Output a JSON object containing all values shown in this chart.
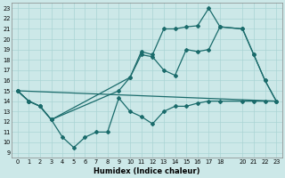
{
  "xlabel": "Humidex (Indice chaleur)",
  "xlim": [
    -0.5,
    23.5
  ],
  "ylim": [
    8.5,
    23.5
  ],
  "yticks": [
    9,
    10,
    11,
    12,
    13,
    14,
    15,
    16,
    17,
    18,
    19,
    20,
    21,
    22,
    23
  ],
  "xticks": [
    0,
    1,
    2,
    3,
    4,
    5,
    6,
    7,
    8,
    9,
    10,
    11,
    12,
    13,
    14,
    15,
    16,
    17,
    18,
    20,
    21,
    22,
    23
  ],
  "line_color": "#1a6b6b",
  "bg_color": "#cce8e8",
  "grid_color": "#aad4d4",
  "line_upper_x": [
    0,
    1,
    2,
    3,
    10,
    11,
    12,
    13,
    14,
    15,
    16,
    17,
    18,
    20,
    21,
    22,
    23
  ],
  "line_upper_y": [
    15,
    14,
    13.5,
    12.2,
    16.3,
    18.8,
    18.5,
    21.0,
    21.0,
    21.2,
    21.3,
    23.0,
    21.2,
    21.0,
    18.5,
    16.0,
    14.0
  ],
  "line_mid_x": [
    0,
    1,
    2,
    3,
    9,
    10,
    11,
    12,
    13,
    14,
    15,
    16,
    17,
    18,
    20,
    21,
    22,
    23
  ],
  "line_mid_y": [
    15,
    14,
    13.5,
    12.2,
    15.0,
    16.3,
    18.5,
    18.3,
    17.0,
    16.5,
    19.0,
    18.8,
    19.0,
    21.2,
    21.0,
    18.5,
    16.0,
    14.0
  ],
  "line_lower_x": [
    0,
    1,
    2,
    3,
    4,
    5,
    6,
    7,
    8,
    9,
    10,
    11,
    12,
    13,
    14,
    15,
    16,
    17,
    18,
    20,
    21,
    22,
    23
  ],
  "line_lower_y": [
    15,
    14,
    13.5,
    12.2,
    10.5,
    9.5,
    10.5,
    11.0,
    11.0,
    14.3,
    13.0,
    12.5,
    11.8,
    13.0,
    13.5,
    13.5,
    13.8,
    14.0,
    14.0,
    14.0,
    14.0,
    14.0,
    14.0
  ],
  "line_trend_x": [
    0,
    23
  ],
  "line_trend_y": [
    15,
    14.0
  ]
}
